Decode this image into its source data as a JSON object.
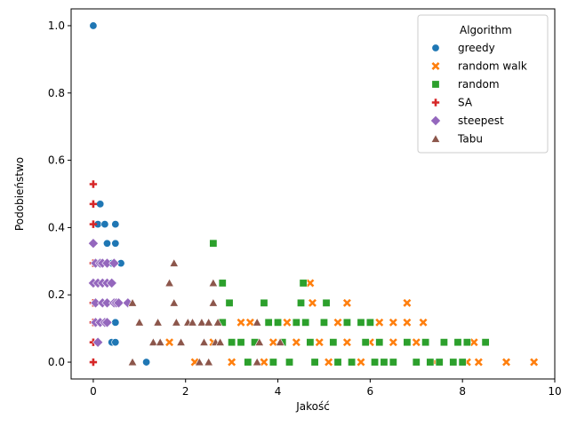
{
  "chart_data": {
    "type": "scatter",
    "title": "",
    "xlabel": "Jakość",
    "ylabel": "Podobieństwo",
    "xlim": [
      -0.48,
      10.0
    ],
    "ylim": [
      -0.05,
      1.05
    ],
    "xticks": [
      0,
      2,
      4,
      6,
      8,
      10
    ],
    "yticks": [
      0.0,
      0.2,
      0.4,
      0.6,
      0.8,
      1.0
    ],
    "grid": false,
    "legend": {
      "title": "Algorithm",
      "position": "top-right"
    },
    "series": [
      {
        "name": "greedy",
        "marker": "circle",
        "color": "#1f77b4",
        "points": [
          [
            0,
            1.0
          ],
          [
            0.15,
            0.47
          ],
          [
            0.1,
            0.41
          ],
          [
            0.25,
            0.41
          ],
          [
            0.48,
            0.41
          ],
          [
            0.3,
            0.353
          ],
          [
            0.48,
            0.353
          ],
          [
            0.1,
            0.294
          ],
          [
            0.2,
            0.294
          ],
          [
            0.3,
            0.294
          ],
          [
            0.4,
            0.294
          ],
          [
            0.6,
            0.294
          ],
          [
            0.1,
            0.235
          ],
          [
            0.3,
            0.235
          ],
          [
            0.2,
            0.176
          ],
          [
            0.5,
            0.176
          ],
          [
            0.3,
            0.118
          ],
          [
            0.48,
            0.118
          ],
          [
            0.4,
            0.059
          ],
          [
            0.48,
            0.059
          ],
          [
            1.15,
            0.0
          ]
        ]
      },
      {
        "name": "random walk",
        "marker": "x",
        "color": "#ff7f0e",
        "points": [
          [
            1.65,
            0.059
          ],
          [
            2.2,
            0.0
          ],
          [
            2.6,
            0.059
          ],
          [
            3.0,
            0.0
          ],
          [
            3.2,
            0.118
          ],
          [
            3.4,
            0.118
          ],
          [
            3.7,
            0.0
          ],
          [
            3.9,
            0.059
          ],
          [
            4.2,
            0.118
          ],
          [
            4.4,
            0.059
          ],
          [
            4.7,
            0.235
          ],
          [
            4.75,
            0.176
          ],
          [
            4.9,
            0.059
          ],
          [
            5.1,
            0.0
          ],
          [
            5.3,
            0.118
          ],
          [
            5.5,
            0.059
          ],
          [
            5.5,
            0.176
          ],
          [
            5.8,
            0.0
          ],
          [
            6.0,
            0.059
          ],
          [
            6.2,
            0.118
          ],
          [
            6.5,
            0.118
          ],
          [
            6.5,
            0.059
          ],
          [
            6.8,
            0.176
          ],
          [
            6.8,
            0.118
          ],
          [
            7.0,
            0.059
          ],
          [
            7.15,
            0.118
          ],
          [
            7.4,
            0.0
          ],
          [
            8.1,
            0.0
          ],
          [
            8.25,
            0.059
          ],
          [
            8.35,
            0.0
          ],
          [
            8.95,
            0.0
          ],
          [
            9.55,
            0.0
          ]
        ]
      },
      {
        "name": "random",
        "marker": "square",
        "color": "#2ca02c",
        "points": [
          [
            2.6,
            0.353
          ],
          [
            2.8,
            0.235
          ],
          [
            2.95,
            0.176
          ],
          [
            2.8,
            0.118
          ],
          [
            3.0,
            0.059
          ],
          [
            3.2,
            0.059
          ],
          [
            3.35,
            0.0
          ],
          [
            3.5,
            0.059
          ],
          [
            3.7,
            0.176
          ],
          [
            3.8,
            0.118
          ],
          [
            3.9,
            0.0
          ],
          [
            4.0,
            0.118
          ],
          [
            4.1,
            0.059
          ],
          [
            4.25,
            0.0
          ],
          [
            4.4,
            0.118
          ],
          [
            4.5,
            0.176
          ],
          [
            4.55,
            0.235
          ],
          [
            4.6,
            0.118
          ],
          [
            4.7,
            0.059
          ],
          [
            4.8,
            0.0
          ],
          [
            5.0,
            0.118
          ],
          [
            5.05,
            0.176
          ],
          [
            5.2,
            0.059
          ],
          [
            5.3,
            0.0
          ],
          [
            5.5,
            0.118
          ],
          [
            5.6,
            0.0
          ],
          [
            5.8,
            0.118
          ],
          [
            5.9,
            0.059
          ],
          [
            6.0,
            0.118
          ],
          [
            6.1,
            0.0
          ],
          [
            6.2,
            0.059
          ],
          [
            6.3,
            0.0
          ],
          [
            6.5,
            0.0
          ],
          [
            6.8,
            0.059
          ],
          [
            7.0,
            0.0
          ],
          [
            7.2,
            0.059
          ],
          [
            7.3,
            0.0
          ],
          [
            7.5,
            0.0
          ],
          [
            7.6,
            0.059
          ],
          [
            7.8,
            0.0
          ],
          [
            7.9,
            0.059
          ],
          [
            8.0,
            0.0
          ],
          [
            8.1,
            0.059
          ],
          [
            8.5,
            0.059
          ]
        ]
      },
      {
        "name": "SA",
        "marker": "plus",
        "color": "#d62728",
        "points": [
          [
            0,
            0.529
          ],
          [
            0,
            0.47
          ],
          [
            0,
            0.41
          ],
          [
            0,
            0.353
          ],
          [
            0,
            0.294
          ],
          [
            0,
            0.235
          ],
          [
            0,
            0.176
          ],
          [
            0,
            0.118
          ],
          [
            0,
            0.059
          ],
          [
            0,
            0.0
          ]
        ]
      },
      {
        "name": "steepest",
        "marker": "diamond",
        "color": "#9467bd",
        "points": [
          [
            0,
            0.353
          ],
          [
            0.05,
            0.294
          ],
          [
            0.15,
            0.294
          ],
          [
            0.2,
            0.294
          ],
          [
            0.3,
            0.294
          ],
          [
            0.45,
            0.294
          ],
          [
            0,
            0.235
          ],
          [
            0.1,
            0.235
          ],
          [
            0.2,
            0.235
          ],
          [
            0.3,
            0.235
          ],
          [
            0.4,
            0.235
          ],
          [
            0.05,
            0.176
          ],
          [
            0.2,
            0.176
          ],
          [
            0.3,
            0.176
          ],
          [
            0.45,
            0.176
          ],
          [
            0.5,
            0.176
          ],
          [
            0.55,
            0.176
          ],
          [
            0.75,
            0.176
          ],
          [
            0.05,
            0.118
          ],
          [
            0.15,
            0.118
          ],
          [
            0.25,
            0.118
          ],
          [
            0.3,
            0.118
          ],
          [
            0.1,
            0.059
          ]
        ]
      },
      {
        "name": "Tabu",
        "marker": "triangle",
        "color": "#8c564b",
        "points": [
          [
            0.85,
            0.176
          ],
          [
            0.85,
            0.0
          ],
          [
            1.0,
            0.118
          ],
          [
            1.3,
            0.059
          ],
          [
            1.4,
            0.118
          ],
          [
            1.45,
            0.059
          ],
          [
            1.65,
            0.235
          ],
          [
            1.75,
            0.294
          ],
          [
            1.75,
            0.176
          ],
          [
            1.8,
            0.118
          ],
          [
            1.9,
            0.059
          ],
          [
            2.05,
            0.118
          ],
          [
            2.15,
            0.118
          ],
          [
            2.3,
            0.0
          ],
          [
            2.35,
            0.118
          ],
          [
            2.4,
            0.059
          ],
          [
            2.5,
            0.0
          ],
          [
            2.5,
            0.118
          ],
          [
            2.6,
            0.235
          ],
          [
            2.6,
            0.176
          ],
          [
            2.65,
            0.059
          ],
          [
            2.7,
            0.118
          ],
          [
            2.75,
            0.059
          ],
          [
            3.55,
            0.118
          ],
          [
            3.6,
            0.059
          ],
          [
            3.55,
            0.0
          ],
          [
            4.05,
            0.059
          ]
        ]
      }
    ]
  }
}
